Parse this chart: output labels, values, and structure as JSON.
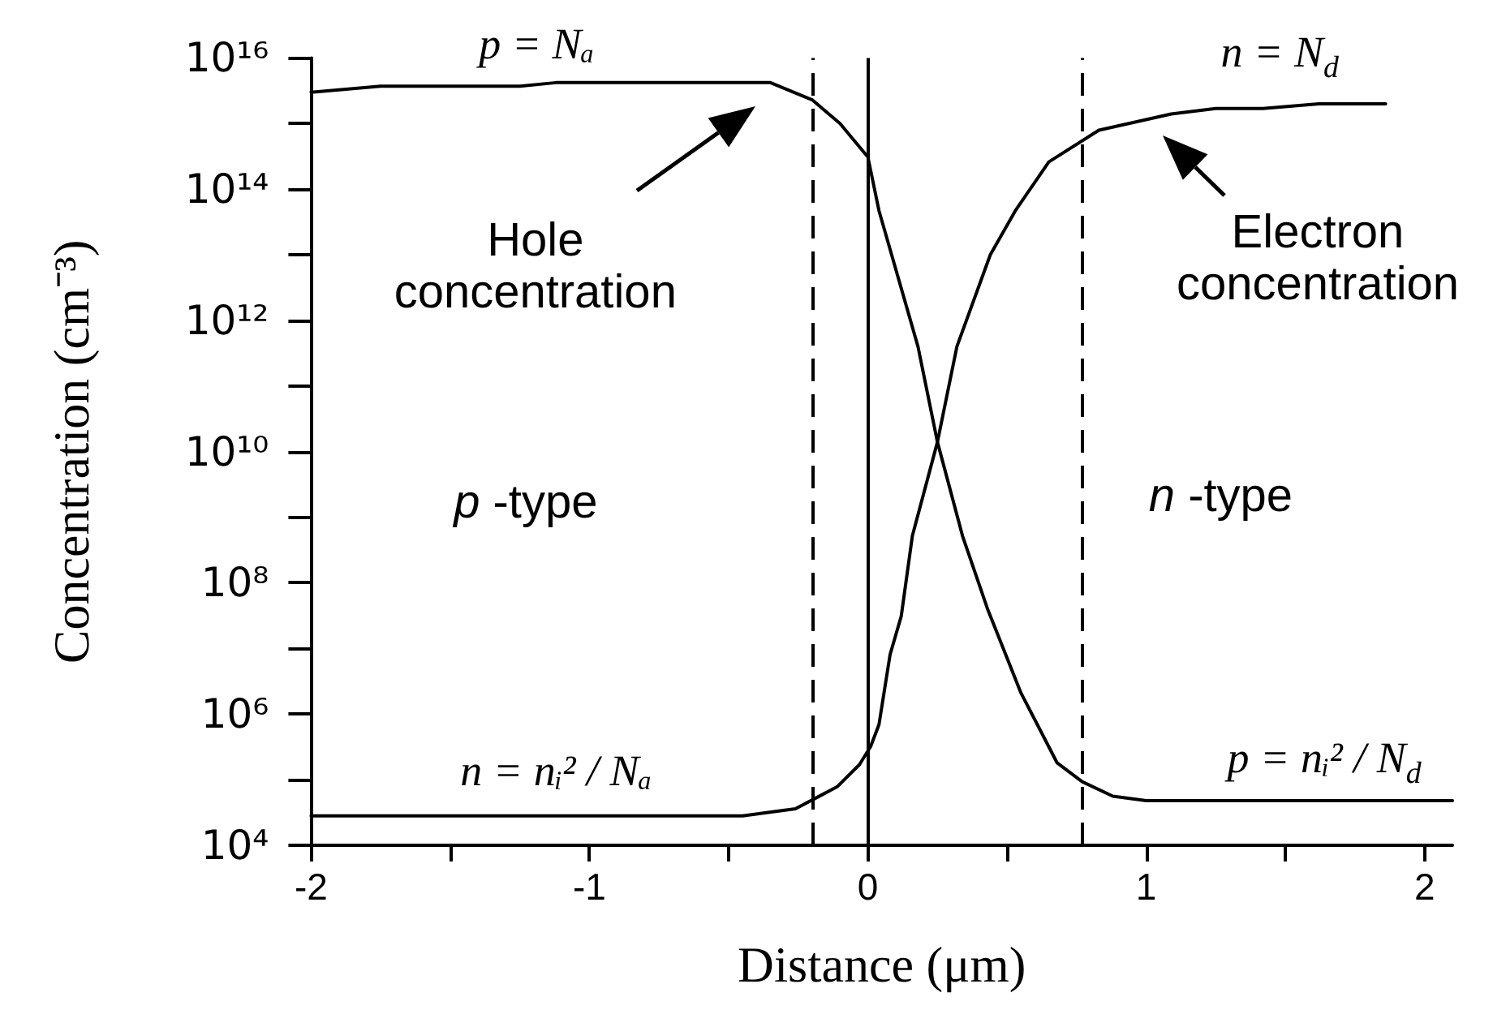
{
  "chart_data": {
    "type": "line",
    "xlabel": "Distance (μm)",
    "ylabel": "Concentration (cm⁻³)",
    "series": [
      {
        "color": "#000000",
        "x": [
          -2,
          -1.75,
          -1.25,
          -1.12,
          -0.35,
          -0.2,
          -0.1,
          0,
          0.04,
          0.18,
          0.25,
          0.34,
          0.43,
          0.55,
          0.68,
          0.77,
          0.88,
          1,
          2.1
        ],
        "values": [
          3000000000000000.0,
          3700000000000000.0,
          3700000000000000.0,
          4200000000000000.0,
          4200000000000000.0,
          2300000000000000.0,
          1000000000000000.0,
          310000000000000.0,
          47000000000000.0,
          400000000000.0,
          14000000000.0,
          520000000.0,
          40000000.0,
          2100000.0,
          180000.0,
          93000.0,
          56000.0,
          48000.0,
          48000.0
        ]
      },
      {
        "color": "#000000",
        "x": [
          -2,
          -0.45,
          -0.26,
          -0.11,
          -0.03,
          0.01,
          0.04,
          0.08,
          0.12,
          0.16,
          0.25,
          0.32,
          0.44,
          0.53,
          0.65,
          0.83,
          1.09,
          1.25,
          1.42,
          1.62,
          1.86
        ],
        "values": [
          28000.0,
          28000.0,
          36000.0,
          78000.0,
          170000.0,
          320000.0,
          690000.0,
          8100000.0,
          31000000.0,
          520000000.0,
          14000000000.0,
          400000000000.0,
          10000000000000.0,
          47000000000000.0,
          260000000000000.0,
          790000000000000.0,
          1400000000000000.0,
          1700000000000000.0,
          1700000000000000.0,
          2000000000000000.0,
          2000000000000000.0
        ]
      }
    ],
    "xlim": [
      -2,
      2.1
    ],
    "xticks": [
      -2,
      {
        "value": -1.5,
        "label": null
      },
      -1,
      {
        "value": -0.5,
        "label": null
      },
      0,
      {
        "value": 0.5,
        "label": null
      },
      1,
      {
        "value": 1.5,
        "label": null
      },
      2
    ],
    "ylim": [
      10000.0,
      1e+16
    ],
    "yticks": [
      {
        "value": 10000.0,
        "label": "10⁴"
      },
      {
        "value": 100000.0,
        "label": null
      },
      {
        "value": 1000000.0,
        "label": "10⁶"
      },
      {
        "value": 10000000.0,
        "label": null
      },
      {
        "value": 100000000.0,
        "label": "10⁸"
      },
      {
        "value": 1000000000.0,
        "label": null
      },
      {
        "value": 10000000000.0,
        "label": "10¹⁰"
      },
      {
        "value": 100000000000.0,
        "label": null
      },
      {
        "value": 1000000000000.0,
        "label": "10¹²"
      },
      {
        "value": 10000000000000.0,
        "label": null
      },
      {
        "value": 100000000000000.0,
        "label": "10¹⁴"
      },
      {
        "value": 1000000000000000.0,
        "label": null
      },
      {
        "value": 1e+16,
        "label": "10¹⁶"
      }
    ],
    "log": "y",
    "grid": false,
    "marker": "none",
    "ref_lines": [
      {
        "axis": "x",
        "value": 0
      },
      {
        "axis": "x",
        "value": -0.2,
        "line_style": "dashed"
      },
      {
        "axis": "x",
        "value": 0.77,
        "line_style": "dashed"
      }
    ],
    "annotations": [
      {
        "text": "p = Nₐ",
        "x": -1.19,
        "y": 3900000000000000.0
      },
      {
        "text": "n = N$_{d}$",
        "x": 1.48,
        "y": 1700000000000000.0
      },
      "Hole concentration",
      "Electron concentration",
      "p -type",
      "n -type",
      {
        "text": "n = nᵢ² / Nₐ",
        "x": -1.12,
        "y": 28000.0
      },
      {
        "text": "p = nᵢ² / N$_{d}$",
        "x": 1.64,
        "y": 48000.0
      }
    ]
  }
}
